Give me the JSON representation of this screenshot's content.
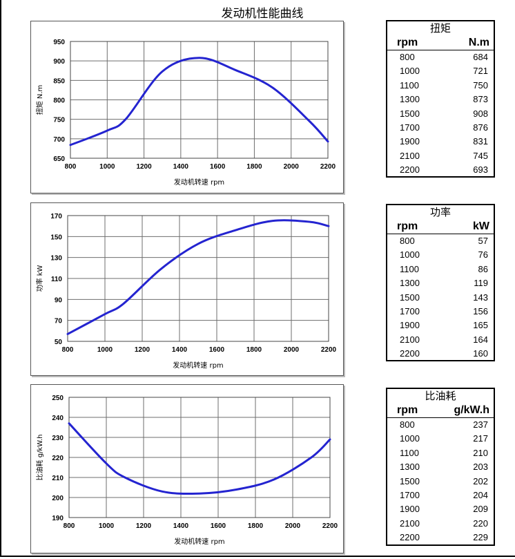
{
  "page": {
    "title": "发动机性能曲线"
  },
  "chart_data": [
    {
      "type": "line",
      "id": "torque",
      "x": [
        800,
        1000,
        1100,
        1300,
        1500,
        1700,
        1900,
        2100,
        2200
      ],
      "series": [
        {
          "values": [
            684,
            721,
            750,
            873,
            908,
            876,
            831,
            745,
            693
          ]
        }
      ],
      "xlabel": "发动机转速  rpm",
      "ylabel": "扭矩  N.m",
      "xlim": [
        800,
        2200
      ],
      "ylim": [
        650,
        950
      ],
      "xticks": [
        800,
        1000,
        1200,
        1400,
        1600,
        1800,
        2000,
        2200
      ],
      "yticks": [
        650,
        700,
        750,
        800,
        850,
        900,
        950
      ],
      "grid": true,
      "color": "#2424d0"
    },
    {
      "type": "line",
      "id": "power",
      "x": [
        800,
        1000,
        1100,
        1300,
        1500,
        1700,
        1900,
        2100,
        2200
      ],
      "series": [
        {
          "values": [
            57,
            76,
            86,
            119,
            143,
            156,
            165,
            164,
            160
          ]
        }
      ],
      "xlabel": "发动机转速  rpm",
      "ylabel": "功率  kW",
      "xlim": [
        800,
        2200
      ],
      "ylim": [
        50,
        170
      ],
      "xticks": [
        800,
        1000,
        1200,
        1400,
        1600,
        1800,
        2000,
        2200
      ],
      "yticks": [
        50,
        70,
        90,
        110,
        130,
        150,
        170
      ],
      "grid": true,
      "color": "#2424d0"
    },
    {
      "type": "line",
      "id": "bsfc",
      "x": [
        800,
        1000,
        1100,
        1300,
        1500,
        1700,
        1900,
        2100,
        2200
      ],
      "series": [
        {
          "values": [
            237,
            217,
            210,
            203,
            202,
            204,
            209,
            220,
            229
          ]
        }
      ],
      "xlabel": "发动机转速  rpm",
      "ylabel": "比油耗  g/kW.h",
      "xlim": [
        800,
        2200
      ],
      "ylim": [
        190,
        250
      ],
      "xticks": [
        800,
        1000,
        1200,
        1400,
        1600,
        1800,
        2000,
        2200
      ],
      "yticks": [
        190,
        200,
        210,
        220,
        230,
        240,
        250
      ],
      "grid": true,
      "color": "#2424d0"
    }
  ],
  "tables": [
    {
      "title": "扭矩",
      "col1": "rpm",
      "col2": "N.m",
      "rows": [
        [
          "800",
          "684"
        ],
        [
          "1000",
          "721"
        ],
        [
          "1100",
          "750"
        ],
        [
          "1300",
          "873"
        ],
        [
          "1500",
          "908"
        ],
        [
          "1700",
          "876"
        ],
        [
          "1900",
          "831"
        ],
        [
          "2100",
          "745"
        ],
        [
          "2200",
          "693"
        ]
      ]
    },
    {
      "title": "功率",
      "col1": "rpm",
      "col2": "kW",
      "rows": [
        [
          "800",
          "57"
        ],
        [
          "1000",
          "76"
        ],
        [
          "1100",
          "86"
        ],
        [
          "1300",
          "119"
        ],
        [
          "1500",
          "143"
        ],
        [
          "1700",
          "156"
        ],
        [
          "1900",
          "165"
        ],
        [
          "2100",
          "164"
        ],
        [
          "2200",
          "160"
        ]
      ]
    },
    {
      "title": "比油耗",
      "col1": "rpm",
      "col2": "g/kW.h",
      "rows": [
        [
          "800",
          "237"
        ],
        [
          "1000",
          "217"
        ],
        [
          "1100",
          "210"
        ],
        [
          "1300",
          "203"
        ],
        [
          "1500",
          "202"
        ],
        [
          "1700",
          "204"
        ],
        [
          "1900",
          "209"
        ],
        [
          "2100",
          "220"
        ],
        [
          "2200",
          "229"
        ]
      ]
    }
  ]
}
